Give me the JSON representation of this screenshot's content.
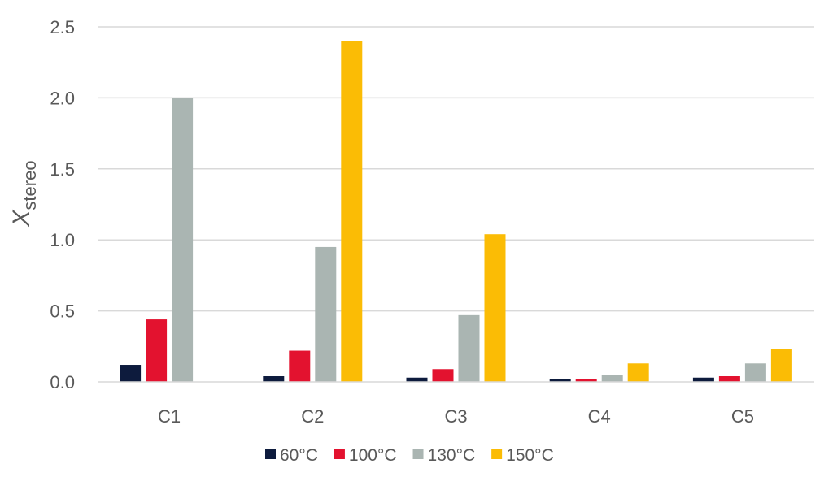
{
  "chart_data": {
    "type": "bar",
    "categories": [
      "C1",
      "C2",
      "C3",
      "C4",
      "C5"
    ],
    "series": [
      {
        "name": "60°C",
        "color": "#0d1b3d",
        "values": [
          0.12,
          0.04,
          0.03,
          0.02,
          0.03
        ]
      },
      {
        "name": "100°C",
        "color": "#e3122f",
        "values": [
          0.44,
          0.22,
          0.09,
          0.02,
          0.04
        ]
      },
      {
        "name": "130°C",
        "color": "#aab5b2",
        "values": [
          2.0,
          0.95,
          0.47,
          0.05,
          0.13
        ]
      },
      {
        "name": "150°C",
        "color": "#fbbc05",
        "values": [
          null,
          2.4,
          1.04,
          0.13,
          0.23
        ]
      }
    ],
    "ylabel": {
      "main": "X",
      "sub": "stereo"
    },
    "ylim": [
      0,
      2.5
    ],
    "yticks": [
      "0.0",
      "0.5",
      "1.0",
      "1.5",
      "2.0",
      "2.5"
    ],
    "grid": true,
    "legend": "bottom"
  }
}
